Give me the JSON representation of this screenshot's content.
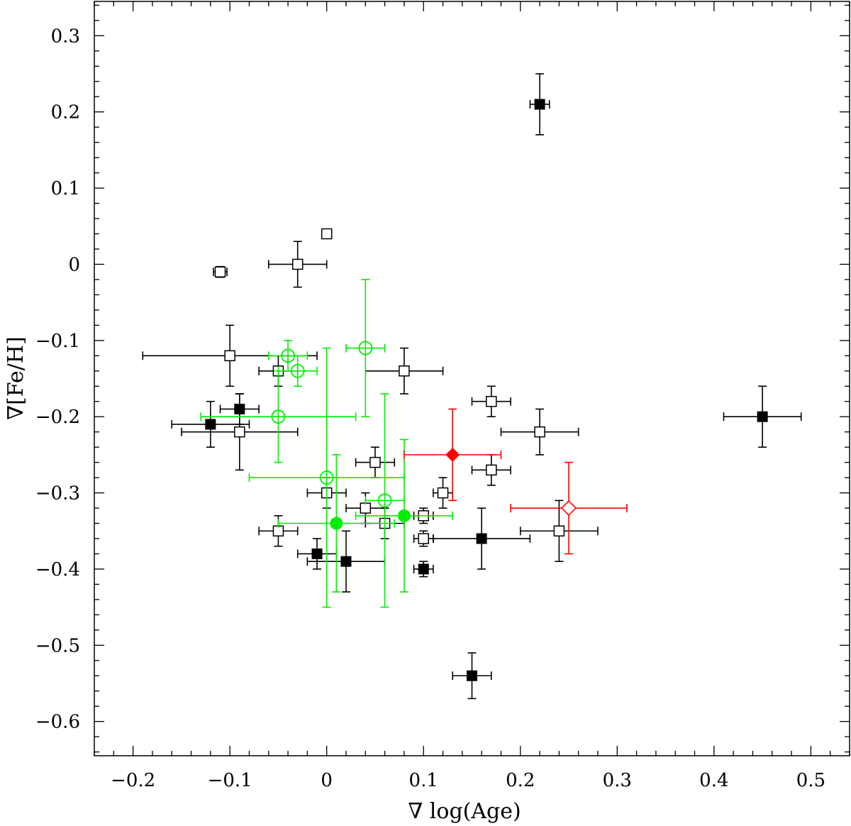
{
  "chart_data": {
    "type": "scatter",
    "xlabel": "∇ log(Age)",
    "ylabel": "∇[Fe/H]",
    "xlim": [
      -0.24,
      0.54
    ],
    "ylim": [
      -0.645,
      0.345
    ],
    "xticks": [
      -0.2,
      -0.1,
      0,
      0.1,
      0.2,
      0.3,
      0.4,
      0.5
    ],
    "xtick_labels": [
      "−0.2",
      "−0.1",
      "0",
      "0.1",
      "0.2",
      "0.3",
      "0.4",
      "0.5"
    ],
    "yticks": [
      0.3,
      0.2,
      0.1,
      0,
      -0.1,
      -0.2,
      -0.3,
      -0.4,
      -0.5,
      -0.6
    ],
    "ytick_labels": [
      "0.3",
      "0.2",
      "0.1",
      "0",
      "−0.1",
      "−0.2",
      "−0.3",
      "−0.4",
      "−0.5",
      "−0.6"
    ],
    "grid": false,
    "series": [
      {
        "marker": "open-square",
        "color": "#000000",
        "points": [
          {
            "x": -0.11,
            "y": -0.01,
            "xerr": 0.007,
            "yerr": 0.007
          },
          {
            "x": 0.0,
            "y": 0.04,
            "xerr": 0.005,
            "yerr": 0.005
          },
          {
            "x": -0.03,
            "y": 0.0,
            "xerr": 0.03,
            "yerr": 0.03
          },
          {
            "x": -0.1,
            "y": -0.12,
            "xerr": 0.09,
            "yerr": 0.04
          },
          {
            "x": -0.05,
            "y": -0.14,
            "xerr": 0.02,
            "yerr": 0.02
          },
          {
            "x": 0.08,
            "y": -0.14,
            "xerr": 0.04,
            "yerr": 0.03
          },
          {
            "x": -0.09,
            "y": -0.22,
            "xerr": 0.06,
            "yerr": 0.05
          },
          {
            "x": 0.17,
            "y": -0.18,
            "xerr": 0.02,
            "yerr": 0.02
          },
          {
            "x": 0.22,
            "y": -0.22,
            "xerr": 0.04,
            "yerr": 0.03
          },
          {
            "x": 0.05,
            "y": -0.26,
            "xerr": 0.02,
            "yerr": 0.02
          },
          {
            "x": 0.17,
            "y": -0.27,
            "xerr": 0.02,
            "yerr": 0.02
          },
          {
            "x": 0.0,
            "y": -0.3,
            "xerr": 0.02,
            "yerr": 0.02
          },
          {
            "x": 0.12,
            "y": -0.3,
            "xerr": 0.01,
            "yerr": 0.02
          },
          {
            "x": 0.04,
            "y": -0.32,
            "xerr": 0.02,
            "yerr": 0.02
          },
          {
            "x": 0.1,
            "y": -0.33,
            "xerr": 0.01,
            "yerr": 0.01
          },
          {
            "x": 0.06,
            "y": -0.34,
            "xerr": 0.02,
            "yerr": 0.02
          },
          {
            "x": -0.05,
            "y": -0.35,
            "xerr": 0.02,
            "yerr": 0.02
          },
          {
            "x": 0.1,
            "y": -0.36,
            "xerr": 0.01,
            "yerr": 0.01
          },
          {
            "x": 0.24,
            "y": -0.35,
            "xerr": 0.04,
            "yerr": 0.04
          }
        ]
      },
      {
        "marker": "filled-square",
        "color": "#000000",
        "points": [
          {
            "x": 0.22,
            "y": 0.21,
            "xerr": 0.01,
            "yerr": 0.04
          },
          {
            "x": -0.09,
            "y": -0.19,
            "xerr": 0.02,
            "yerr": 0.02
          },
          {
            "x": -0.12,
            "y": -0.21,
            "xerr": 0.04,
            "yerr": 0.03
          },
          {
            "x": 0.45,
            "y": -0.2,
            "xerr": 0.04,
            "yerr": 0.04
          },
          {
            "x": 0.16,
            "y": -0.36,
            "xerr": 0.05,
            "yerr": 0.04
          },
          {
            "x": -0.01,
            "y": -0.38,
            "xerr": 0.02,
            "yerr": 0.02
          },
          {
            "x": 0.02,
            "y": -0.39,
            "xerr": 0.04,
            "yerr": 0.04
          },
          {
            "x": 0.1,
            "y": -0.4,
            "xerr": 0.01,
            "yerr": 0.01
          },
          {
            "x": 0.15,
            "y": -0.54,
            "xerr": 0.02,
            "yerr": 0.03
          }
        ]
      },
      {
        "marker": "open-circle",
        "color": "#00ee00",
        "points": [
          {
            "x": 0.04,
            "y": -0.11,
            "xerr": 0.02,
            "yerr": 0.09
          },
          {
            "x": -0.04,
            "y": -0.12,
            "xerr": 0.02,
            "yerr": 0.02
          },
          {
            "x": -0.03,
            "y": -0.14,
            "xerr": 0.02,
            "yerr": 0.02
          },
          {
            "x": -0.05,
            "y": -0.2,
            "xerr": 0.08,
            "yerr": 0.06
          },
          {
            "x": 0.0,
            "y": -0.28,
            "xerr": 0.08,
            "yerr": 0.17
          },
          {
            "x": 0.06,
            "y": -0.31,
            "xerr": 0.02,
            "yerr": 0.14
          }
        ]
      },
      {
        "marker": "filled-circle",
        "color": "#00ee00",
        "points": [
          {
            "x": 0.01,
            "y": -0.34,
            "xerr": 0.06,
            "yerr": 0.09
          },
          {
            "x": 0.08,
            "y": -0.33,
            "xerr": 0.05,
            "yerr": 0.1
          }
        ]
      },
      {
        "marker": "filled-diamond",
        "color": "#ff0000",
        "points": [
          {
            "x": 0.13,
            "y": -0.25,
            "xerr": 0.05,
            "yerr": 0.06
          }
        ]
      },
      {
        "marker": "open-diamond",
        "color": "#ff0000",
        "points": [
          {
            "x": 0.25,
            "y": -0.32,
            "xerr": 0.06,
            "yerr": 0.06
          }
        ]
      }
    ]
  }
}
